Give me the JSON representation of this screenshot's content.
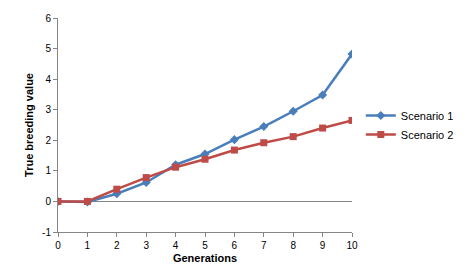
{
  "chart_data": {
    "type": "line",
    "x_label": "Generations",
    "y_label": "True breeding value",
    "x": [
      0,
      1,
      2,
      3,
      4,
      5,
      6,
      7,
      8,
      9,
      10
    ],
    "series": [
      {
        "name": "Scenario 1",
        "color": "#4a7ebb",
        "marker": "diamond",
        "values": [
          0,
          -0.02,
          0.25,
          0.62,
          1.2,
          1.55,
          2.02,
          2.45,
          2.95,
          3.48,
          4.82
        ]
      },
      {
        "name": "Scenario 2",
        "color": "#be4b48",
        "marker": "square",
        "values": [
          0,
          0,
          0.4,
          0.78,
          1.12,
          1.38,
          1.68,
          1.92,
          2.12,
          2.4,
          2.65
        ]
      }
    ],
    "xlim": [
      0,
      10
    ],
    "xticks": [
      0,
      1,
      2,
      3,
      4,
      5,
      6,
      7,
      8,
      9,
      10
    ],
    "ylim": [
      -1,
      6
    ],
    "yticks": [
      -1,
      0,
      1,
      2,
      3,
      4,
      5,
      6
    ],
    "grid": false,
    "legend": "right"
  }
}
